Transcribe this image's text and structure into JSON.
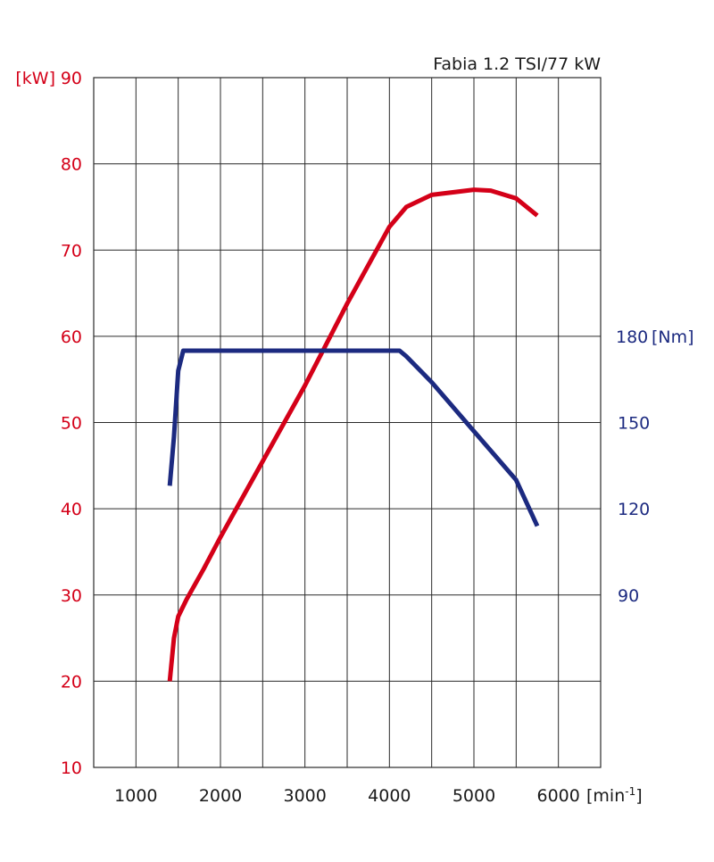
{
  "chart_data": {
    "type": "line",
    "title": "Fabia 1.2 TSI/77 kW",
    "x_unit_label": "[min",
    "x_unit_sup": "-1",
    "x_unit_close": "]",
    "y_left_unit_label": "[kW]",
    "y_right_unit_label": "[Nm]",
    "xlim": [
      500,
      6500
    ],
    "x_grid_step": 500,
    "x_ticks": [
      1000,
      2000,
      3000,
      4000,
      5000,
      6000
    ],
    "ylim_left": [
      10,
      90
    ],
    "y_left_ticks": [
      10,
      20,
      30,
      40,
      50,
      60,
      70,
      80,
      90
    ],
    "y_right_ticks": [
      90,
      120,
      150,
      180
    ],
    "right_axis_mapping": {
      "nm_a": 90,
      "kw_a": 30,
      "nm_b": 180,
      "kw_b": 60
    },
    "grid": true,
    "colors": {
      "power": "#d40018",
      "torque": "#1c2a80"
    },
    "series": [
      {
        "axis": "left",
        "color": "#d40018",
        "points": [
          [
            1400,
            20
          ],
          [
            1450,
            25
          ],
          [
            1500,
            27.5
          ],
          [
            1600,
            29.5
          ],
          [
            1800,
            33
          ],
          [
            2000,
            36.7
          ],
          [
            2500,
            45.5
          ],
          [
            3000,
            54.3
          ],
          [
            3500,
            63.8
          ],
          [
            4000,
            72.7
          ],
          [
            4200,
            75
          ],
          [
            4500,
            76.4
          ],
          [
            5000,
            77
          ],
          [
            5200,
            76.9
          ],
          [
            5500,
            76
          ],
          [
            5750,
            74
          ]
        ]
      },
      {
        "axis": "right",
        "color": "#1c2a80",
        "points": [
          [
            1400,
            128
          ],
          [
            1450,
            145
          ],
          [
            1500,
            168
          ],
          [
            1560,
            175
          ],
          [
            2000,
            175
          ],
          [
            3000,
            175
          ],
          [
            4000,
            175
          ],
          [
            4120,
            175
          ],
          [
            4200,
            173
          ],
          [
            4500,
            164
          ],
          [
            5000,
            147
          ],
          [
            5500,
            130
          ],
          [
            5750,
            114
          ]
        ]
      }
    ]
  }
}
